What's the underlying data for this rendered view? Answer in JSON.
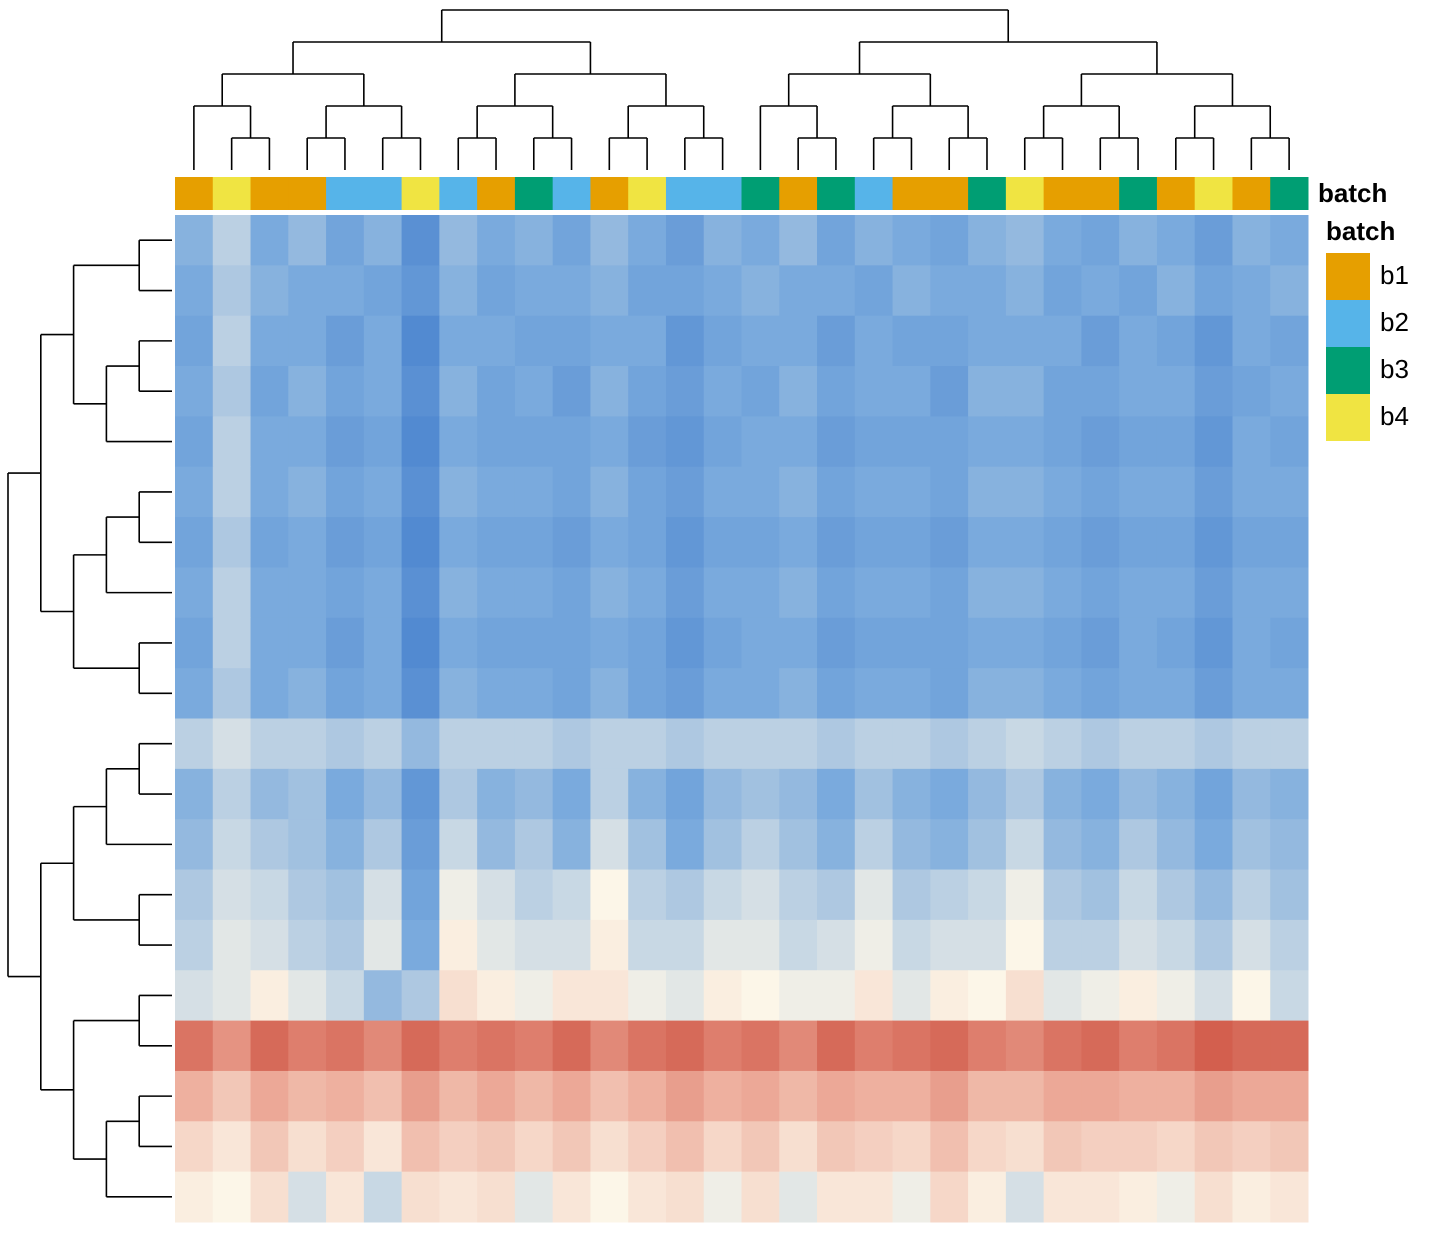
{
  "chart_data": {
    "type": "heatmap",
    "annotation_label": "batch",
    "legend_title": "batch",
    "levels": [
      {
        "name": "b1",
        "color": "#e69f00"
      },
      {
        "name": "b2",
        "color": "#56b4e9"
      },
      {
        "name": "b3",
        "color": "#009e73"
      },
      {
        "name": "b4",
        "color": "#f0e442"
      }
    ],
    "column_batch": [
      "b1",
      "b4",
      "b1",
      "b1",
      "b2",
      "b2",
      "b4",
      "b2",
      "b1",
      "b3",
      "b2",
      "b1",
      "b4",
      "b2",
      "b2",
      "b3",
      "b1",
      "b3",
      "b2",
      "b1",
      "b1",
      "b3",
      "b4",
      "b1",
      "b1",
      "b3",
      "b1",
      "b4",
      "b1",
      "b3"
    ],
    "zlim": [
      -2,
      2
    ],
    "color_breaks": [
      -2,
      -1,
      0,
      1,
      2
    ],
    "colors": [
      "#2a6ac4",
      "#7aaadd",
      "#fcf6e8",
      "#eca897",
      "#c8402f"
    ],
    "matrix": [
      [
        -0.9,
        -0.5,
        -1.0,
        -0.8,
        -1.1,
        -0.9,
        -1.4,
        -0.8,
        -1.0,
        -0.9,
        -1.1,
        -0.8,
        -1.0,
        -1.2,
        -0.9,
        -1.0,
        -0.8,
        -1.1,
        -0.9,
        -1.0,
        -1.1,
        -0.9,
        -0.8,
        -1.0,
        -1.1,
        -0.9,
        -1.0,
        -1.2,
        -0.9,
        -1.0
      ],
      [
        -1.0,
        -0.6,
        -0.9,
        -1.0,
        -1.0,
        -1.1,
        -1.3,
        -0.9,
        -1.1,
        -1.0,
        -1.0,
        -0.9,
        -1.1,
        -1.1,
        -1.0,
        -0.9,
        -1.0,
        -1.0,
        -1.1,
        -0.9,
        -1.0,
        -1.0,
        -0.9,
        -1.1,
        -1.0,
        -1.1,
        -0.9,
        -1.1,
        -1.0,
        -0.9
      ],
      [
        -1.1,
        -0.5,
        -1.0,
        -1.0,
        -1.2,
        -1.0,
        -1.5,
        -1.0,
        -1.0,
        -1.1,
        -1.1,
        -1.0,
        -1.0,
        -1.3,
        -1.1,
        -1.0,
        -1.0,
        -1.2,
        -1.0,
        -1.1,
        -1.1,
        -1.0,
        -1.0,
        -1.0,
        -1.2,
        -1.0,
        -1.1,
        -1.3,
        -1.0,
        -1.1
      ],
      [
        -1.0,
        -0.6,
        -1.1,
        -0.9,
        -1.1,
        -1.0,
        -1.4,
        -0.9,
        -1.1,
        -1.0,
        -1.2,
        -0.9,
        -1.1,
        -1.2,
        -1.0,
        -1.1,
        -0.9,
        -1.1,
        -1.0,
        -1.0,
        -1.2,
        -0.9,
        -0.9,
        -1.1,
        -1.1,
        -1.0,
        -1.0,
        -1.2,
        -1.1,
        -1.0
      ],
      [
        -1.1,
        -0.5,
        -1.0,
        -1.0,
        -1.2,
        -1.1,
        -1.5,
        -1.0,
        -1.1,
        -1.1,
        -1.1,
        -1.0,
        -1.2,
        -1.3,
        -1.1,
        -1.0,
        -1.0,
        -1.2,
        -1.1,
        -1.1,
        -1.1,
        -1.0,
        -1.0,
        -1.1,
        -1.2,
        -1.1,
        -1.1,
        -1.3,
        -1.0,
        -1.1
      ],
      [
        -1.0,
        -0.5,
        -1.0,
        -0.9,
        -1.1,
        -1.0,
        -1.4,
        -0.9,
        -1.0,
        -1.0,
        -1.1,
        -0.9,
        -1.1,
        -1.2,
        -1.0,
        -1.0,
        -0.9,
        -1.1,
        -1.0,
        -1.0,
        -1.1,
        -0.9,
        -0.9,
        -1.0,
        -1.1,
        -1.0,
        -1.0,
        -1.2,
        -1.0,
        -1.0
      ],
      [
        -1.1,
        -0.6,
        -1.1,
        -1.0,
        -1.2,
        -1.1,
        -1.5,
        -1.0,
        -1.1,
        -1.1,
        -1.2,
        -1.0,
        -1.1,
        -1.3,
        -1.1,
        -1.1,
        -1.0,
        -1.2,
        -1.1,
        -1.1,
        -1.2,
        -1.0,
        -1.0,
        -1.1,
        -1.2,
        -1.1,
        -1.1,
        -1.3,
        -1.1,
        -1.1
      ],
      [
        -1.0,
        -0.5,
        -1.0,
        -1.0,
        -1.1,
        -1.0,
        -1.4,
        -0.9,
        -1.0,
        -1.0,
        -1.1,
        -0.9,
        -1.0,
        -1.2,
        -1.0,
        -1.0,
        -0.9,
        -1.1,
        -1.0,
        -1.0,
        -1.1,
        -0.9,
        -0.9,
        -1.0,
        -1.1,
        -1.0,
        -1.0,
        -1.2,
        -1.0,
        -1.0
      ],
      [
        -1.1,
        -0.5,
        -1.0,
        -1.0,
        -1.2,
        -1.0,
        -1.5,
        -1.0,
        -1.1,
        -1.1,
        -1.1,
        -1.0,
        -1.1,
        -1.3,
        -1.1,
        -1.0,
        -1.0,
        -1.2,
        -1.1,
        -1.1,
        -1.1,
        -1.0,
        -1.0,
        -1.1,
        -1.2,
        -1.0,
        -1.1,
        -1.3,
        -1.0,
        -1.1
      ],
      [
        -1.0,
        -0.6,
        -1.0,
        -0.9,
        -1.1,
        -1.0,
        -1.4,
        -0.9,
        -1.0,
        -1.0,
        -1.1,
        -0.9,
        -1.1,
        -1.2,
        -1.0,
        -1.0,
        -0.9,
        -1.1,
        -1.0,
        -1.0,
        -1.1,
        -0.9,
        -0.9,
        -1.0,
        -1.1,
        -1.0,
        -1.0,
        -1.2,
        -1.0,
        -1.0
      ],
      [
        -0.5,
        -0.3,
        -0.5,
        -0.5,
        -0.6,
        -0.5,
        -0.8,
        -0.5,
        -0.5,
        -0.5,
        -0.6,
        -0.5,
        -0.5,
        -0.6,
        -0.5,
        -0.5,
        -0.5,
        -0.6,
        -0.5,
        -0.5,
        -0.6,
        -0.5,
        -0.4,
        -0.5,
        -0.6,
        -0.5,
        -0.5,
        -0.6,
        -0.5,
        -0.5
      ],
      [
        -0.9,
        -0.5,
        -0.8,
        -0.7,
        -1.0,
        -0.8,
        -1.3,
        -0.6,
        -0.9,
        -0.8,
        -1.0,
        -0.5,
        -0.9,
        -1.1,
        -0.8,
        -0.7,
        -0.8,
        -1.0,
        -0.7,
        -0.9,
        -1.0,
        -0.8,
        -0.6,
        -0.9,
        -1.0,
        -0.8,
        -0.9,
        -1.1,
        -0.8,
        -0.9
      ],
      [
        -0.8,
        -0.4,
        -0.6,
        -0.7,
        -0.9,
        -0.6,
        -1.2,
        -0.4,
        -0.8,
        -0.6,
        -0.9,
        -0.3,
        -0.7,
        -1.0,
        -0.7,
        -0.5,
        -0.7,
        -0.9,
        -0.5,
        -0.8,
        -0.9,
        -0.7,
        -0.4,
        -0.8,
        -0.9,
        -0.6,
        -0.8,
        -1.0,
        -0.7,
        -0.8
      ],
      [
        -0.6,
        -0.3,
        -0.4,
        -0.6,
        -0.7,
        -0.3,
        -1.1,
        -0.1,
        -0.3,
        -0.5,
        -0.4,
        0.0,
        -0.5,
        -0.6,
        -0.4,
        -0.3,
        -0.5,
        -0.6,
        -0.2,
        -0.6,
        -0.5,
        -0.4,
        -0.1,
        -0.6,
        -0.7,
        -0.4,
        -0.6,
        -0.8,
        -0.5,
        -0.7
      ],
      [
        -0.5,
        -0.2,
        -0.3,
        -0.5,
        -0.6,
        -0.2,
        -1.0,
        0.1,
        -0.2,
        -0.3,
        -0.3,
        0.1,
        -0.4,
        -0.4,
        -0.2,
        -0.2,
        -0.4,
        -0.3,
        -0.1,
        -0.4,
        -0.3,
        -0.3,
        0.0,
        -0.5,
        -0.5,
        -0.3,
        -0.4,
        -0.6,
        -0.3,
        -0.5
      ],
      [
        -0.3,
        -0.2,
        0.1,
        -0.2,
        -0.4,
        -0.8,
        -0.6,
        0.3,
        0.1,
        -0.1,
        0.2,
        0.2,
        -0.1,
        -0.2,
        0.1,
        0.0,
        -0.1,
        -0.1,
        0.2,
        -0.2,
        0.1,
        0.0,
        0.3,
        -0.2,
        -0.1,
        0.1,
        -0.1,
        -0.3,
        0.0,
        -0.4
      ],
      [
        1.5,
        1.2,
        1.6,
        1.4,
        1.5,
        1.3,
        1.6,
        1.4,
        1.5,
        1.4,
        1.6,
        1.3,
        1.5,
        1.6,
        1.4,
        1.5,
        1.3,
        1.6,
        1.4,
        1.5,
        1.6,
        1.4,
        1.3,
        1.5,
        1.6,
        1.4,
        1.5,
        1.7,
        1.6,
        1.6
      ],
      [
        0.9,
        0.6,
        1.0,
        0.8,
        0.9,
        0.7,
        1.1,
        0.8,
        1.0,
        0.8,
        1.0,
        0.7,
        0.9,
        1.1,
        0.9,
        1.0,
        0.8,
        1.0,
        0.9,
        0.9,
        1.1,
        0.8,
        0.8,
        1.0,
        1.0,
        0.9,
        0.9,
        1.1,
        1.0,
        1.0
      ],
      [
        0.4,
        0.2,
        0.6,
        0.3,
        0.5,
        0.2,
        0.7,
        0.5,
        0.6,
        0.4,
        0.6,
        0.3,
        0.5,
        0.7,
        0.4,
        0.6,
        0.3,
        0.6,
        0.5,
        0.4,
        0.7,
        0.4,
        0.3,
        0.6,
        0.5,
        0.5,
        0.4,
        0.6,
        0.5,
        0.6
      ],
      [
        0.1,
        0.0,
        0.3,
        -0.3,
        0.2,
        -0.4,
        0.3,
        0.2,
        0.3,
        -0.2,
        0.2,
        0.0,
        0.2,
        0.3,
        -0.1,
        0.3,
        -0.2,
        0.2,
        0.2,
        -0.1,
        0.4,
        0.1,
        -0.3,
        0.2,
        0.2,
        0.1,
        -0.1,
        0.3,
        0.1,
        0.2
      ]
    ]
  }
}
